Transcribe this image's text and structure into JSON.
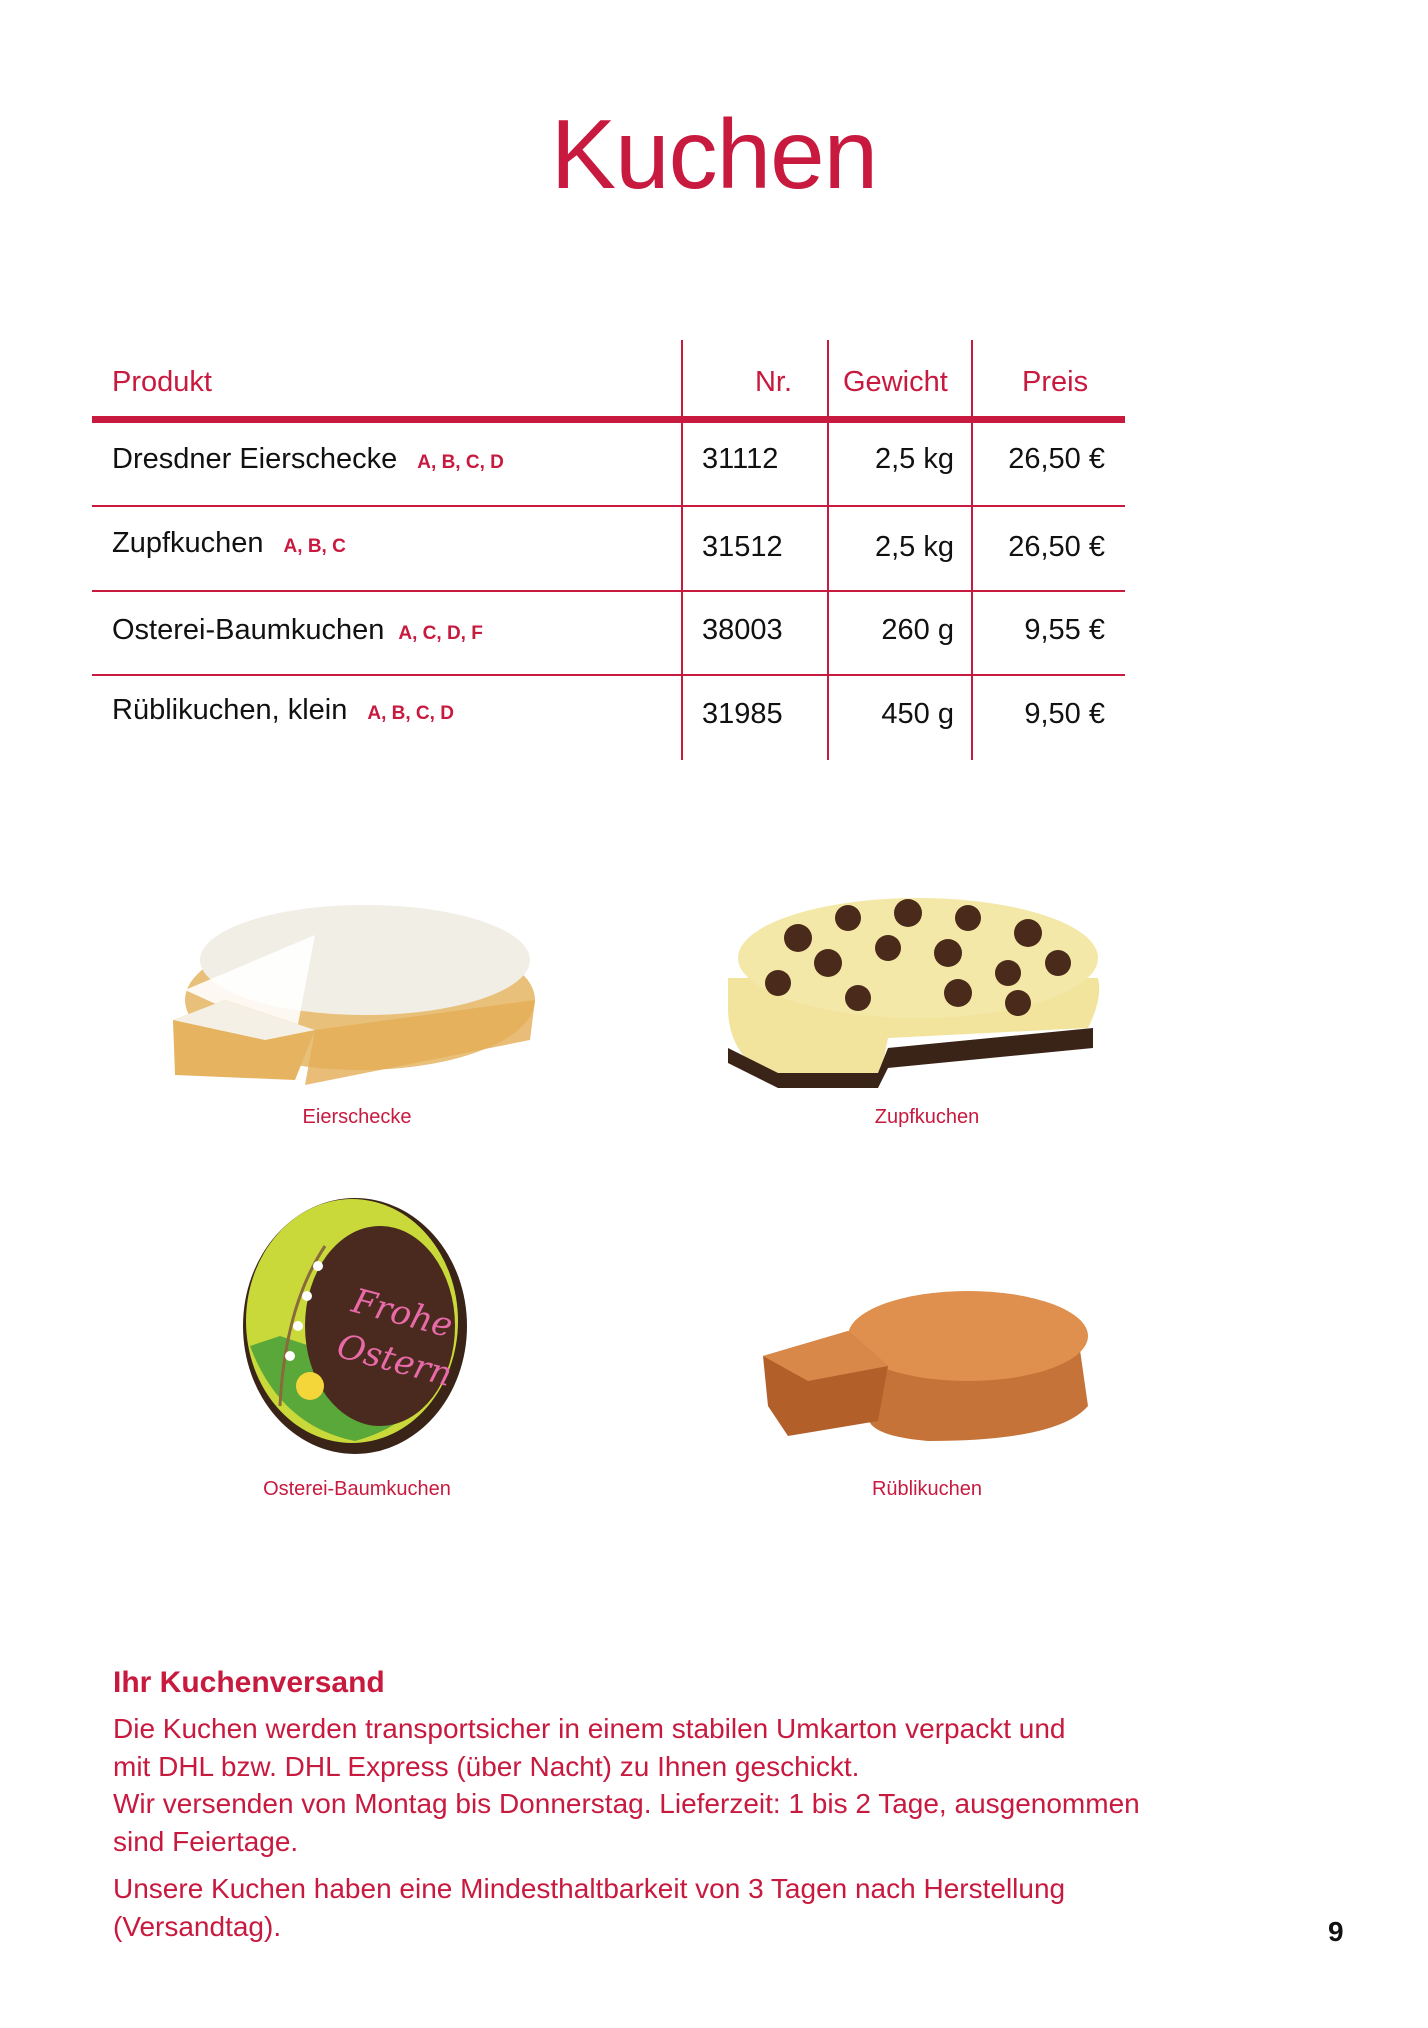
{
  "title": "Kuchen",
  "table": {
    "headers": [
      "Produkt",
      "Nr.",
      "Gewicht",
      "Preis"
    ],
    "rows": [
      {
        "product": "Dresdner Eierschecke",
        "allergens": "A, B, C, D",
        "nr": "31112",
        "weight": "2,5 kg",
        "price": "26,50 €"
      },
      {
        "product": "Zupfkuchen",
        "allergens": "A, B, C",
        "nr": "31512",
        "weight": "2,5 kg",
        "price": "26,50 €"
      },
      {
        "product": "Osterei-Baumkuchen",
        "allergens": "A, C, D, F",
        "nr": "38003",
        "weight": "260 g",
        "price": "9,55 €"
      },
      {
        "product": "Rüblikuchen, klein",
        "allergens": "A, B, C, D",
        "nr": "31985",
        "weight": "450 g",
        "price": "9,50 €"
      }
    ]
  },
  "photos": [
    {
      "caption": "Eierschecke"
    },
    {
      "caption": "Zupfkuchen"
    },
    {
      "caption": "Osterei-Baumkuchen",
      "decoration_text": "Frohe Ostern"
    },
    {
      "caption": "Rüblikuchen"
    }
  ],
  "shipping": {
    "heading": "Ihr Kuchenversand",
    "paragraph1_lines": [
      "Die Kuchen werden transportsicher in einem stabilen Umkarton verpackt und",
      "mit DHL bzw. DHL Express (über Nacht) zu Ihnen geschickt.",
      "Wir versenden von Montag bis Donnerstag. Lieferzeit: 1 bis 2 Tage, ausgenommen",
      "sind Feiertage."
    ],
    "paragraph2_lines": [
      "Unsere Kuchen haben eine Mindesthaltbarkeit von 3 Tagen nach Herstellung",
      "(Versandtag)."
    ]
  },
  "page_number": "9",
  "colors": {
    "accent": "#c8193f",
    "text": "#111111"
  }
}
